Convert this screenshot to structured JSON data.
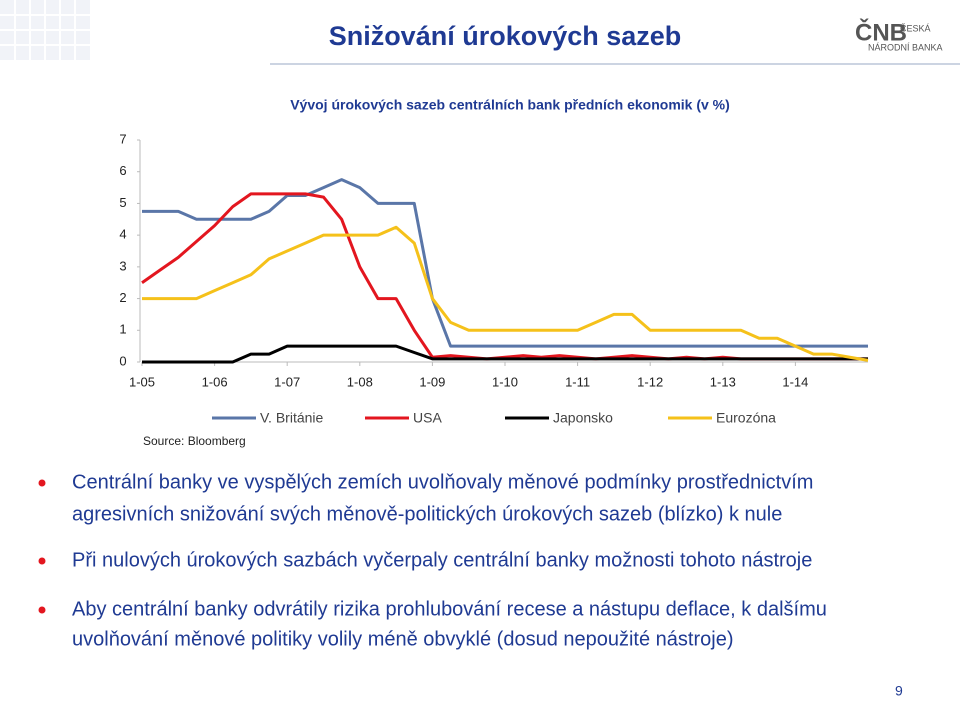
{
  "header": {
    "title": "Snižování úrokových sazeb",
    "logo": {
      "abbr": "ČNB",
      "name1": "ČESKÁ",
      "name2": "NÁRODNÍ BANKA"
    }
  },
  "chart_data": {
    "type": "line",
    "title": "Vývoj úrokových sazeb centrálních bank předních ekonomik (v %)",
    "source": "Source: Bloomberg",
    "x": [
      2005,
      2005.25,
      2005.5,
      2005.75,
      2006,
      2006.25,
      2006.5,
      2006.75,
      2007,
      2007.25,
      2007.5,
      2007.75,
      2008,
      2008.25,
      2008.5,
      2008.75,
      2009,
      2009.25,
      2009.5,
      2009.75,
      2010,
      2010.25,
      2010.5,
      2010.75,
      2011,
      2011.25,
      2011.5,
      2011.75,
      2012,
      2012.25,
      2012.5,
      2012.75,
      2013,
      2013.25,
      2013.5,
      2013.75,
      2014,
      2014.25,
      2014.5,
      2014.75,
      2015
    ],
    "series": [
      {
        "name": "V. Británie",
        "color": "#5a76a8",
        "values": [
          4.75,
          4.75,
          4.75,
          4.5,
          4.5,
          4.5,
          4.5,
          4.75,
          5.25,
          5.25,
          5.5,
          5.75,
          5.5,
          5.0,
          5.0,
          5.0,
          2.0,
          0.5,
          0.5,
          0.5,
          0.5,
          0.5,
          0.5,
          0.5,
          0.5,
          0.5,
          0.5,
          0.5,
          0.5,
          0.5,
          0.5,
          0.5,
          0.5,
          0.5,
          0.5,
          0.5,
          0.5,
          0.5,
          0.5,
          0.5,
          0.5
        ]
      },
      {
        "name": "USA",
        "color": "#e3161f",
        "values": [
          2.5,
          2.9,
          3.3,
          3.8,
          4.3,
          4.9,
          5.3,
          5.3,
          5.3,
          5.3,
          5.2,
          4.5,
          3.0,
          2.0,
          2.0,
          1.0,
          0.15,
          0.2,
          0.15,
          0.1,
          0.15,
          0.2,
          0.15,
          0.2,
          0.15,
          0.1,
          0.15,
          0.2,
          0.15,
          0.1,
          0.15,
          0.1,
          0.15,
          0.1,
          0.1,
          0.1,
          0.1,
          0.1,
          0.1,
          0.1,
          0.1
        ]
      },
      {
        "name": "Japonsko",
        "color": "#000000",
        "values": [
          0,
          0,
          0,
          0,
          0,
          0,
          0.25,
          0.25,
          0.5,
          0.5,
          0.5,
          0.5,
          0.5,
          0.5,
          0.5,
          0.3,
          0.1,
          0.1,
          0.1,
          0.1,
          0.1,
          0.1,
          0.1,
          0.1,
          0.1,
          0.1,
          0.1,
          0.1,
          0.1,
          0.1,
          0.1,
          0.1,
          0.1,
          0.1,
          0.1,
          0.1,
          0.1,
          0.1,
          0.1,
          0.1,
          0.1
        ]
      },
      {
        "name": "Eurozóna",
        "color": "#f5c11a",
        "values": [
          2.0,
          2.0,
          2.0,
          2.0,
          2.25,
          2.5,
          2.75,
          3.25,
          3.5,
          3.75,
          4.0,
          4.0,
          4.0,
          4.0,
          4.25,
          3.75,
          2.0,
          1.25,
          1.0,
          1.0,
          1.0,
          1.0,
          1.0,
          1.0,
          1.0,
          1.25,
          1.5,
          1.5,
          1.0,
          1.0,
          1.0,
          1.0,
          1.0,
          1.0,
          0.75,
          0.75,
          0.5,
          0.25,
          0.25,
          0.15,
          0.05
        ]
      }
    ],
    "xlim": [
      2005,
      2015
    ],
    "ylim": [
      0,
      7
    ],
    "xticks": [
      {
        "value": 2005,
        "label": "1-05"
      },
      {
        "value": 2006,
        "label": "1-06"
      },
      {
        "value": 2007,
        "label": "1-07"
      },
      {
        "value": 2008,
        "label": "1-08"
      },
      {
        "value": 2009,
        "label": "1-09"
      },
      {
        "value": 2010,
        "label": "1-10"
      },
      {
        "value": 2011,
        "label": "1-11"
      },
      {
        "value": 2012,
        "label": "1-12"
      },
      {
        "value": 2013,
        "label": "1-13"
      },
      {
        "value": 2014,
        "label": "1-14"
      }
    ],
    "yticks": [
      0,
      1,
      2,
      3,
      4,
      5,
      6,
      7
    ]
  },
  "bullets": [
    [
      "Centrální banky ve vyspělých zemích uvolňovaly měnové podmínky prostřednictvím",
      "agresivních snižování svých měnově-politických úrokových sazeb (blízko) k nule"
    ],
    [
      "Při nulových úrokových sazbách vyčerpaly centrální banky možnosti tohoto nástroje"
    ],
    [
      "Aby centrální banky odvrátily rizika prohlubování recese a nástupu deflace, k dalšímu",
      "uvolňování měnové politiky volily méně obvyklé (dosud nepoužité nástroje)"
    ]
  ],
  "page_number": "9"
}
